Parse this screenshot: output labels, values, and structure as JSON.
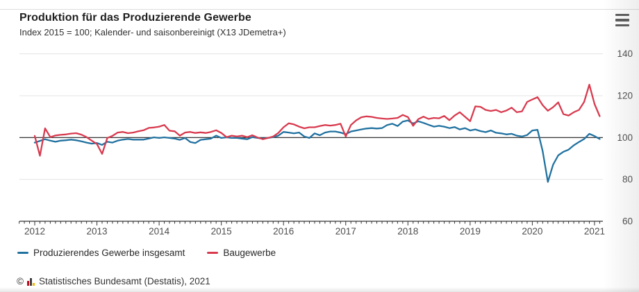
{
  "header": {
    "title": "Produktion für das Produzierende Gewerbe",
    "subtitle": "Index 2015 = 100; Kalender- und saisonbereinigt (X13 JDemetra+)"
  },
  "menu": {
    "icon": "hamburger-menu-icon",
    "purpose": "chart export menu"
  },
  "footer": {
    "copyright_symbol": "©",
    "logo_icon": "destatis-logo",
    "text": "Statistisches Bundesamt (Destatis), 2021"
  },
  "colors": {
    "series_total_blue": "#2071a0",
    "series_bau_red": "#d83a4e",
    "gridline": "#e3e3e3",
    "baseline_100": "#1a1a1a",
    "axis": "#333333",
    "axis_label": "#4d4d4d"
  },
  "chart_data": {
    "type": "line",
    "title": "Produktion für das Produzierende Gewerbe",
    "subtitle": "Index 2015 = 100; Kalender- und saisonbereinigt (X13 JDemetra+)",
    "x_unit": "month",
    "x_start": "2012-01",
    "x_end": "2021-02",
    "x_tick_labels": [
      "2012",
      "2013",
      "2014",
      "2015",
      "2016",
      "2017",
      "2018",
      "2019",
      "2020",
      "2021"
    ],
    "y_ticks": [
      60,
      80,
      100,
      120,
      140
    ],
    "ylim": [
      60,
      140
    ],
    "baseline": 100,
    "grid": true,
    "legend_position": "bottom-left",
    "series": [
      {
        "name": "Produzierendes Gewerbe insgesamt",
        "color": "#2071a0",
        "values": [
          97.6,
          98.4,
          99.2,
          98.5,
          98.0,
          98.5,
          98.7,
          99.0,
          98.7,
          98.2,
          97.6,
          97.1,
          97.4,
          96.5,
          98.0,
          97.6,
          98.5,
          99.0,
          99.3,
          99.0,
          99.0,
          99.0,
          99.5,
          100.1,
          99.8,
          100.1,
          99.8,
          99.5,
          98.9,
          99.8,
          97.9,
          97.4,
          98.9,
          99.2,
          99.5,
          100.9,
          99.8,
          100.1,
          99.8,
          99.8,
          99.5,
          99.2,
          100.2,
          99.8,
          99.5,
          99.8,
          100.2,
          100.9,
          102.7,
          102.4,
          102.0,
          102.4,
          100.5,
          99.8,
          102.0,
          101.1,
          102.4,
          102.9,
          102.9,
          102.4,
          101.6,
          102.9,
          103.4,
          103.9,
          104.3,
          104.5,
          104.3,
          104.5,
          106.0,
          106.6,
          105.5,
          107.6,
          108.2,
          106.7,
          107.8,
          107.0,
          106.1,
          105.2,
          105.6,
          105.2,
          104.5,
          105.0,
          103.9,
          104.5,
          103.4,
          103.9,
          103.1,
          102.6,
          103.4,
          102.3,
          102.0,
          101.5,
          101.8,
          100.9,
          100.5,
          101.2,
          103.4,
          103.7,
          93.5,
          78.8,
          87.0,
          91.5,
          93.2,
          94.2,
          96.3,
          97.9,
          99.3,
          101.8,
          100.7,
          99.3
        ]
      },
      {
        "name": "Baugewerbe",
        "color": "#d83a4e",
        "values": [
          100.8,
          91.3,
          104.4,
          100.2,
          101.0,
          101.3,
          101.5,
          101.9,
          102.1,
          101.4,
          100.2,
          98.5,
          96.9,
          92.2,
          99.8,
          100.8,
          102.4,
          102.7,
          102.1,
          102.4,
          103.0,
          103.5,
          104.6,
          104.8,
          105.2,
          106.0,
          103.3,
          103.0,
          100.9,
          102.4,
          102.7,
          102.2,
          102.5,
          102.2,
          102.7,
          103.5,
          102.2,
          100.2,
          100.9,
          100.5,
          100.9,
          100.2,
          101.1,
          100.0,
          99.2,
          99.8,
          100.5,
          102.2,
          104.9,
          106.8,
          106.3,
          105.2,
          104.4,
          104.9,
          104.9,
          105.5,
          106.0,
          105.7,
          106.0,
          106.6,
          100.5,
          106.0,
          108.2,
          109.7,
          110.1,
          109.9,
          109.4,
          109.1,
          108.9,
          109.1,
          109.4,
          110.8,
          109.8,
          105.6,
          108.8,
          110.0,
          108.9,
          109.4,
          109.2,
          110.3,
          108.3,
          110.5,
          112.1,
          110.0,
          107.8,
          114.9,
          114.7,
          113.2,
          112.7,
          113.2,
          112.1,
          112.9,
          114.3,
          112.1,
          112.5,
          117.0,
          118.2,
          119.3,
          115.5,
          112.8,
          114.5,
          116.8,
          111.2,
          110.5,
          112.1,
          113.2,
          117.0,
          125.3,
          116.0,
          110.2
        ]
      }
    ]
  }
}
